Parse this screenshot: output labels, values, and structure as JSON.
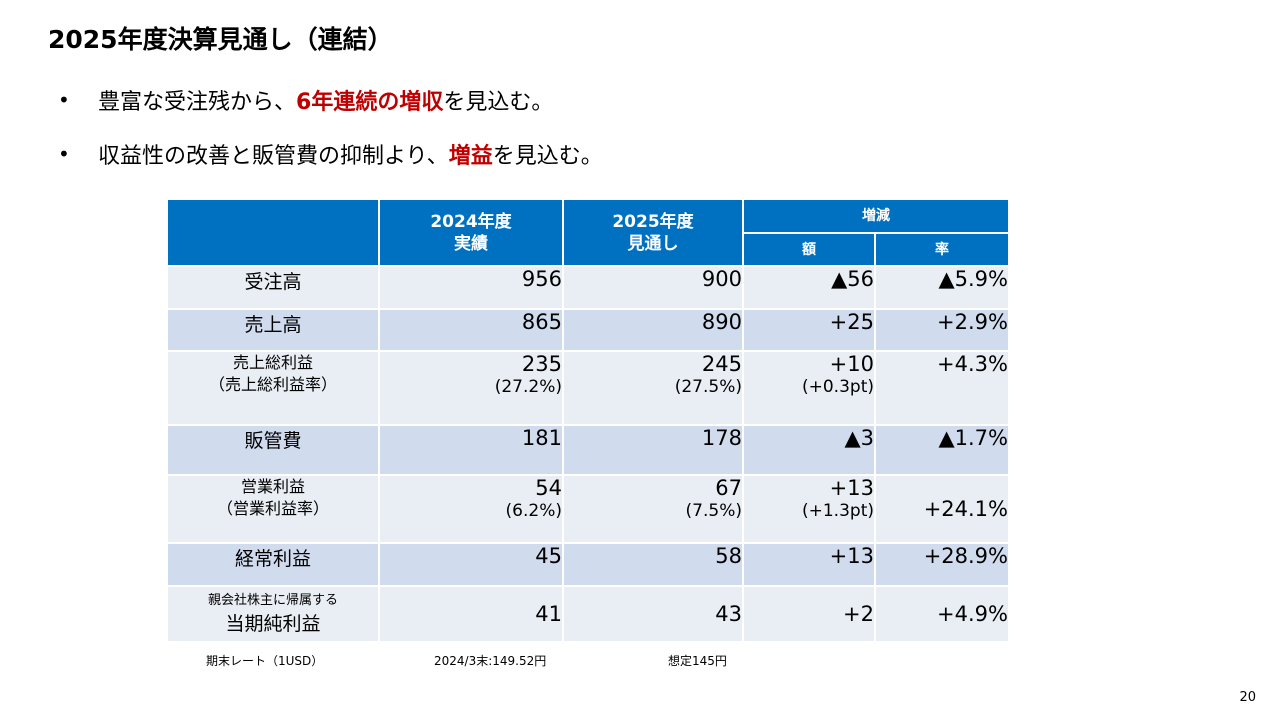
{
  "title": "2025年度決算見通し（連結）",
  "bullets": [
    {
      "pre": "豊富な受注残から、",
      "highlight": "6年連続の増収",
      "post": "を見込む。"
    },
    {
      "pre": "収益性の改善と販管費の抑制より、",
      "highlight": "増益",
      "post": "を見込む。"
    }
  ],
  "table": {
    "headers": {
      "fy2024_line1": "2024年度",
      "fy2024_line2": "実績",
      "fy2025_line1": "2025年度",
      "fy2025_line2": "見通し",
      "change": "増減",
      "amount": "額",
      "rate": "率"
    },
    "rows": [
      {
        "label": "受注高",
        "v2024": "956",
        "v2025": "900",
        "diff": "▲56",
        "rate": "▲5.9%"
      },
      {
        "label": "売上高",
        "v2024": "865",
        "v2025": "890",
        "diff": "+25",
        "rate": "+2.9%"
      },
      {
        "label": "売上総利益",
        "label_sub": "（売上総利益率）",
        "v2024": "235",
        "v2024_sub": "(27.2%)",
        "v2025": "245",
        "v2025_sub": "(27.5%)",
        "diff": "+10",
        "diff_sub": "(+0.3pt)",
        "rate": "+4.3%"
      },
      {
        "label": "販管費",
        "v2024": "181",
        "v2025": "178",
        "diff": "▲3",
        "rate": "▲1.7%"
      },
      {
        "label": "営業利益",
        "label_sub": "（営業利益率）",
        "v2024": "54",
        "v2024_sub": "(6.2%)",
        "v2025": "67",
        "v2025_sub": "(7.5%)",
        "diff": "+13",
        "diff_sub": "(+1.3pt)",
        "rate": "+24.1%"
      },
      {
        "label": "経常利益",
        "v2024": "45",
        "v2025": "58",
        "diff": "+13",
        "rate": "+28.9%"
      },
      {
        "label_top": "親会社株主に帰属する",
        "label": "当期純利益",
        "v2024": "41",
        "v2025": "43",
        "diff": "+2",
        "rate": "+4.9%"
      }
    ]
  },
  "footnote": {
    "label": "期末レート（1USD）",
    "fy2024": "2024/3末:149.52円",
    "fy2025": "想定145円"
  },
  "page_number": "20"
}
